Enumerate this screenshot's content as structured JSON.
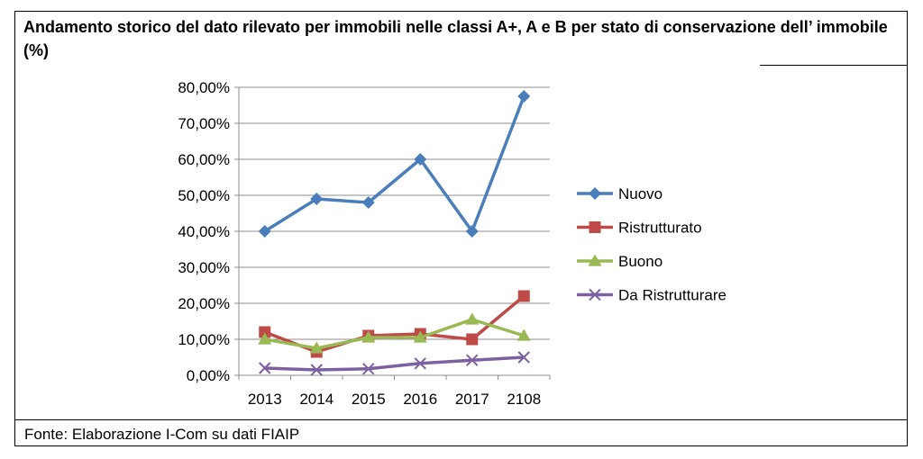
{
  "title": "Andamento storico del dato rilevato per immobili nelle classi A+, A e B per stato di conservazione dell’ immobile (%)",
  "source": "Fonte: Elaborazione I-Com su dati FIAIP",
  "chart_data": {
    "type": "line",
    "categories": [
      "2013",
      "2014",
      "2015",
      "2016",
      "2017",
      "2108"
    ],
    "ylim": [
      0,
      80
    ],
    "yticks": [
      0,
      10,
      20,
      30,
      40,
      50,
      60,
      70,
      80
    ],
    "ytick_labels": [
      "0,00%",
      "10,00%",
      "20,00%",
      "30,00%",
      "40,00%",
      "50,00%",
      "60,00%",
      "70,00%",
      "80,00%"
    ],
    "grid": true,
    "legend_position": "right",
    "series": [
      {
        "name": "Nuovo",
        "color": "#4a7ebb",
        "marker": "diamond",
        "values": [
          40,
          49,
          48,
          60,
          40,
          77.5
        ]
      },
      {
        "name": "Ristrutturato",
        "color": "#be4b48",
        "marker": "square",
        "values": [
          12,
          6.5,
          11,
          11.5,
          10,
          22
        ]
      },
      {
        "name": "Buono",
        "color": "#98b954",
        "marker": "triangle",
        "values": [
          10,
          7.5,
          10.5,
          10.5,
          15.5,
          11
        ]
      },
      {
        "name": "Da Ristrutturare",
        "color": "#7d60a0",
        "marker": "x",
        "values": [
          2,
          1.5,
          1.8,
          3.3,
          4.2,
          5
        ]
      }
    ]
  }
}
